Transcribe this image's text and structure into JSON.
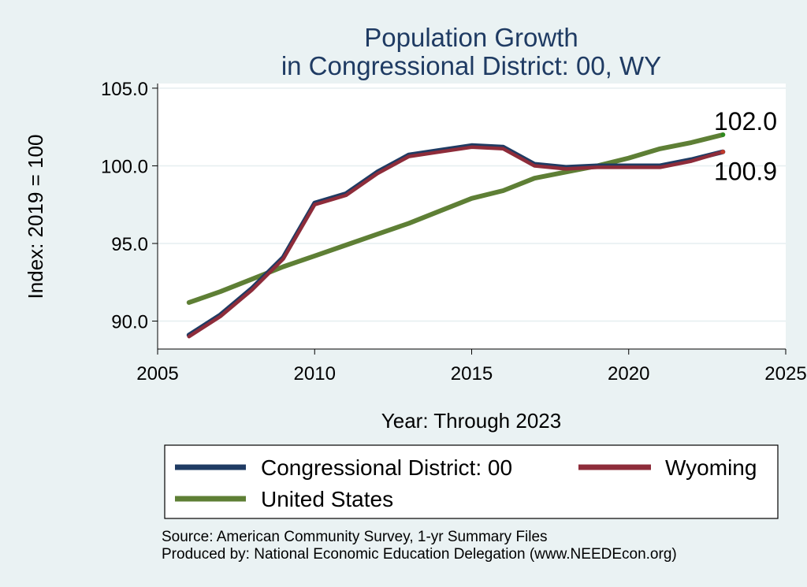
{
  "chart_data": {
    "type": "line",
    "title": [
      "Population Growth",
      "in Congressional District: 00, WY"
    ],
    "xlabel": "Year: Through 2023",
    "ylabel": "Index: 2019 = 100",
    "xlim": [
      2005,
      2025
    ],
    "ylim": [
      88.2,
      105.3
    ],
    "xticks": [
      2005,
      2010,
      2015,
      2020,
      2025
    ],
    "xtick_labels": [
      "2005",
      "2010",
      "2015",
      "2020",
      "2025"
    ],
    "yticks": [
      90,
      95,
      100,
      105
    ],
    "ytick_labels": [
      "90.0",
      "95.0",
      "100.0",
      "105.0"
    ],
    "grid": true,
    "legend_position": "bottom",
    "x": [
      2006,
      2007,
      2008,
      2009,
      2010,
      2011,
      2012,
      2013,
      2014,
      2015,
      2016,
      2017,
      2018,
      2019,
      2020,
      2021,
      2022,
      2023
    ],
    "series": [
      {
        "name": "Congressional District: 00",
        "color": "#1f3b63",
        "values": [
          89.1,
          90.4,
          92.1,
          94.1,
          97.6,
          98.2,
          99.6,
          100.7,
          101.0,
          101.3,
          101.2,
          100.1,
          99.9,
          100.0,
          100.0,
          100.0,
          100.4,
          100.9
        ]
      },
      {
        "name": "Wyoming",
        "color": "#8e2c3a",
        "values": [
          89.0,
          90.3,
          92.0,
          94.0,
          97.5,
          98.1,
          99.5,
          100.6,
          100.9,
          101.2,
          101.1,
          100.0,
          99.8,
          99.9,
          99.9,
          99.9,
          100.3,
          100.9
        ]
      },
      {
        "name": "United States",
        "color": "#5e7f35",
        "values": [
          91.2,
          91.9,
          92.7,
          93.5,
          94.2,
          94.9,
          95.6,
          96.3,
          97.1,
          97.9,
          98.4,
          99.2,
          99.6,
          100.0,
          100.5,
          101.1,
          101.5,
          102.0
        ]
      }
    ],
    "end_labels": [
      {
        "text": "102.0",
        "value": 102.0
      },
      {
        "text": "100.9",
        "value": 100.9
      }
    ],
    "end_marker_colors": [
      "#2e8b1e",
      "#c0392b"
    ],
    "source_notes": [
      "Source: American Community Survey, 1-yr Summary Files",
      "Produced by: National Economic Education Delegation (www.NEEDEcon.org)"
    ]
  },
  "colors": {
    "background": "#eaf2f3",
    "plot_background": "#ffffff",
    "grid": "#e6eef0",
    "title": "#1f3b63"
  }
}
